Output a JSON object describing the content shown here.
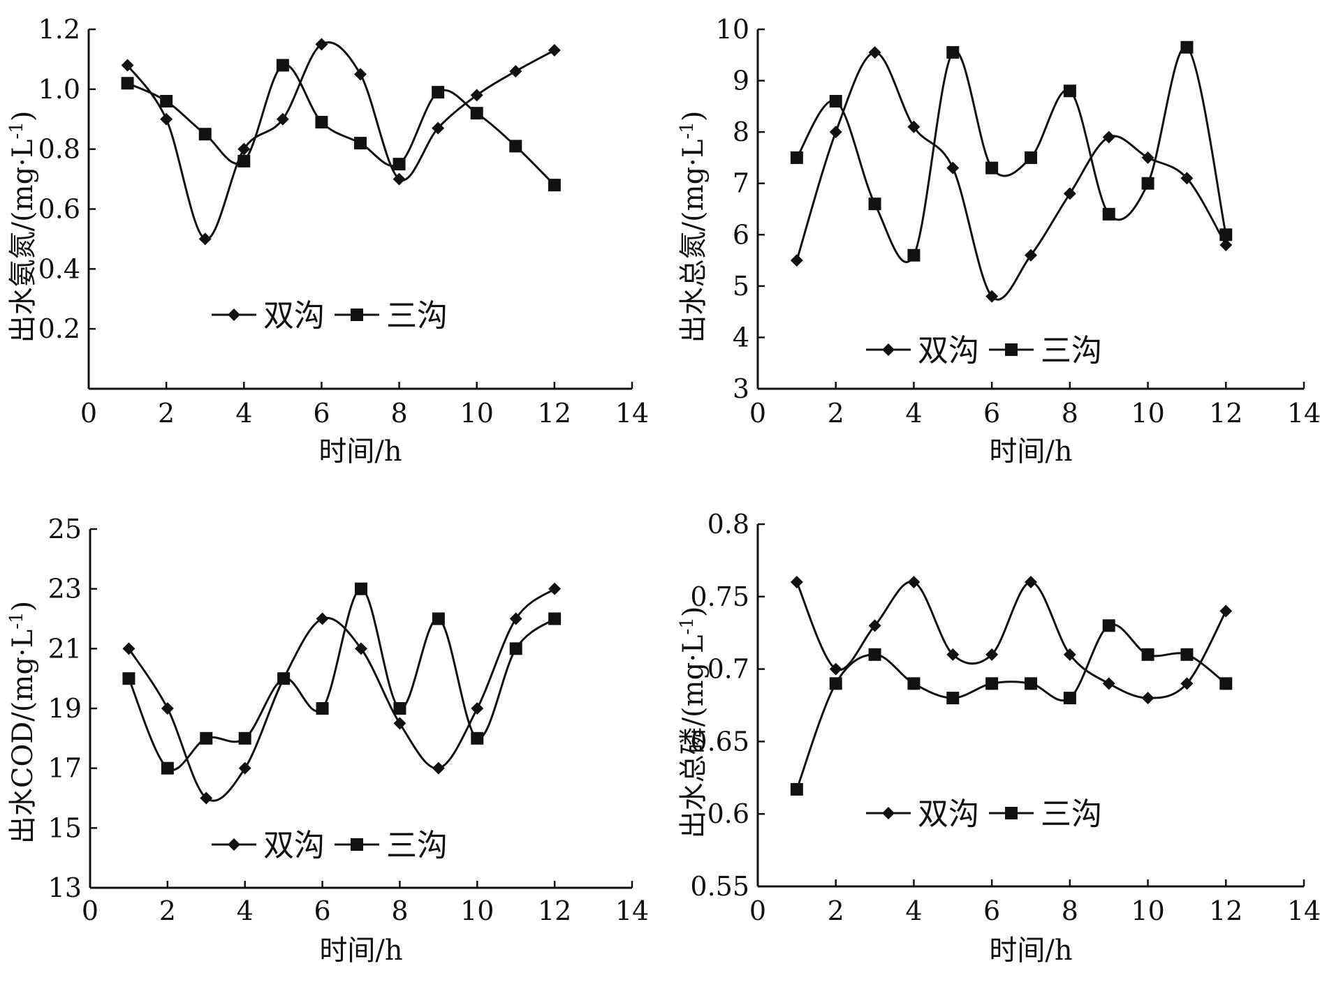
{
  "chart_data": [
    {
      "type": "line",
      "ylabel": "出水氨氮/(mg·L-1)",
      "xlabel": "时间/h",
      "xlim": [
        0,
        14
      ],
      "ylim": [
        0,
        1.2
      ],
      "xticks": [
        "0",
        "2",
        "4",
        "6",
        "8",
        "10",
        "12",
        "14"
      ],
      "yticks": [
        "0.2",
        "0.4",
        "0.6",
        "0.8",
        "1.0",
        "1.2"
      ],
      "ytick_values": [
        0.2,
        0.4,
        0.6,
        0.8,
        1.0,
        1.2
      ],
      "legend": "middle-left",
      "series": [
        {
          "name": "双沟",
          "marker": "diamond",
          "x": [
            1,
            2,
            3,
            4,
            5,
            6,
            7,
            8,
            9,
            10,
            11,
            12
          ],
          "values": [
            1.08,
            0.9,
            0.5,
            0.8,
            0.9,
            1.15,
            1.05,
            0.7,
            0.87,
            0.98,
            1.06,
            1.13
          ]
        },
        {
          "name": "三沟",
          "marker": "square",
          "x": [
            1,
            2,
            3,
            4,
            5,
            6,
            7,
            8,
            9,
            10,
            11,
            12
          ],
          "values": [
            1.02,
            0.96,
            0.85,
            0.76,
            1.08,
            0.89,
            0.82,
            0.75,
            0.99,
            0.92,
            0.81,
            0.68
          ]
        }
      ]
    },
    {
      "type": "line",
      "ylabel": "出水总氮/(mg·L-1)",
      "xlabel": "时间/h",
      "xlim": [
        0,
        14
      ],
      "ylim": [
        3,
        10
      ],
      "xticks": [
        "0",
        "2",
        "4",
        "6",
        "8",
        "10",
        "12",
        "14"
      ],
      "yticks": [
        "3",
        "4",
        "5",
        "6",
        "7",
        "8",
        "9",
        "10"
      ],
      "ytick_values": [
        3,
        4,
        5,
        6,
        7,
        8,
        9,
        10
      ],
      "legend": "bottom-center",
      "series": [
        {
          "name": "双沟",
          "marker": "diamond",
          "x": [
            1,
            2,
            3,
            4,
            5,
            6,
            7,
            8,
            9,
            10,
            11,
            12
          ],
          "values": [
            5.5,
            8.0,
            9.55,
            8.1,
            7.3,
            4.8,
            5.6,
            6.8,
            7.9,
            7.5,
            7.1,
            5.8
          ]
        },
        {
          "name": "三沟",
          "marker": "square",
          "x": [
            1,
            2,
            3,
            4,
            5,
            6,
            7,
            8,
            9,
            10,
            11,
            12
          ],
          "values": [
            7.5,
            8.6,
            6.6,
            5.6,
            9.55,
            7.3,
            7.5,
            8.8,
            6.4,
            7.0,
            9.65,
            6.0
          ]
        }
      ]
    },
    {
      "type": "line",
      "ylabel": "出水COD/(mg·L-1)",
      "xlabel": "时间/h",
      "xlim": [
        0,
        14
      ],
      "ylim": [
        13,
        25
      ],
      "xticks": [
        "0",
        "2",
        "4",
        "6",
        "8",
        "10",
        "12",
        "14"
      ],
      "yticks": [
        "13",
        "15",
        "17",
        "19",
        "21",
        "23",
        "25"
      ],
      "ytick_values": [
        13,
        15,
        17,
        19,
        21,
        23,
        25
      ],
      "legend": "bottom-center",
      "series": [
        {
          "name": "双沟",
          "marker": "diamond",
          "x": [
            1,
            2,
            3,
            4,
            5,
            6,
            7,
            8,
            9,
            10,
            11,
            12
          ],
          "values": [
            21.0,
            19.0,
            16.0,
            17.0,
            20.0,
            22.0,
            21.0,
            18.5,
            17.0,
            19.0,
            22.0,
            23.0
          ]
        },
        {
          "name": "三沟",
          "marker": "square",
          "x": [
            1,
            2,
            3,
            4,
            5,
            6,
            7,
            8,
            9,
            10,
            11,
            12
          ],
          "values": [
            20.0,
            17.0,
            18.0,
            18.0,
            20.0,
            19.0,
            23.0,
            19.0,
            22.0,
            18.0,
            21.0,
            22.0
          ]
        }
      ]
    },
    {
      "type": "line",
      "ylabel": "出水总磷/(mg·L-1)",
      "xlabel": "时间/h",
      "xlim": [
        0,
        14
      ],
      "ylim": [
        0.55,
        0.8
      ],
      "xticks": [
        "0",
        "2",
        "4",
        "6",
        "8",
        "10",
        "12",
        "14"
      ],
      "yticks": [
        "0.55",
        "0.6",
        "0.65",
        "0.7",
        "0.75",
        "0.8"
      ],
      "ytick_values": [
        0.55,
        0.6,
        0.65,
        0.7,
        0.75,
        0.8
      ],
      "legend": "bottom-center",
      "series": [
        {
          "name": "双沟",
          "marker": "diamond",
          "x": [
            1,
            2,
            3,
            4,
            5,
            6,
            7,
            8,
            9,
            10,
            11,
            12
          ],
          "values": [
            0.76,
            0.7,
            0.73,
            0.76,
            0.71,
            0.71,
            0.76,
            0.71,
            0.69,
            0.68,
            0.69,
            0.74
          ]
        },
        {
          "name": "三沟",
          "marker": "square",
          "x": [
            1,
            2,
            3,
            4,
            5,
            6,
            7,
            8,
            9,
            10,
            11,
            12
          ],
          "values": [
            0.617,
            0.69,
            0.71,
            0.69,
            0.68,
            0.69,
            0.69,
            0.68,
            0.73,
            0.71,
            0.71,
            0.69
          ]
        }
      ]
    }
  ]
}
